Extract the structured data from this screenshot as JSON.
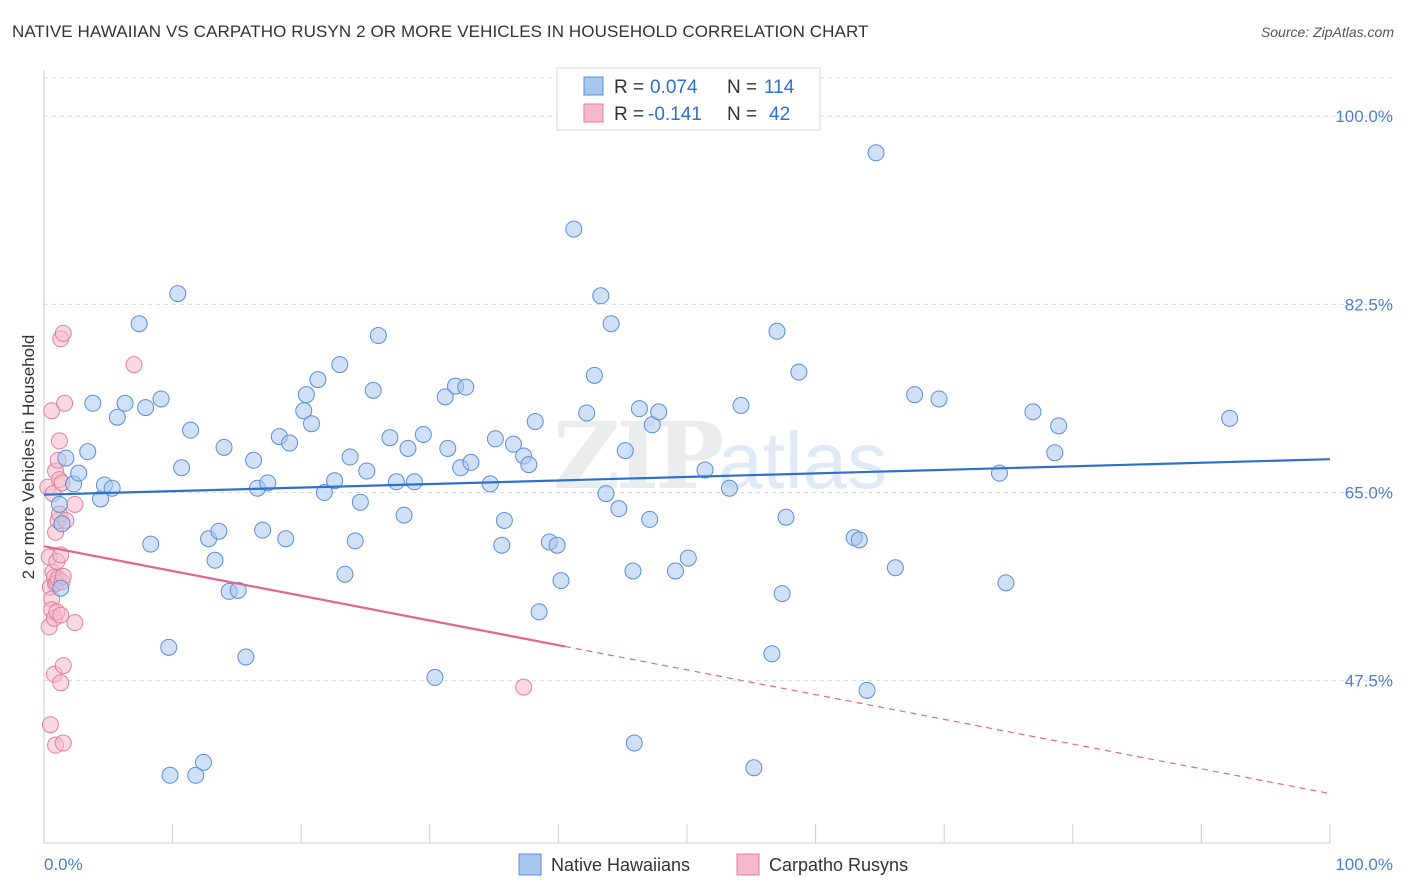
{
  "header": {
    "title": "NATIVE HAWAIIAN VS CARPATHO RUSYN 2 OR MORE VEHICLES IN HOUSEHOLD CORRELATION CHART",
    "source": "Source: ZipAtlas.com"
  },
  "watermark": {
    "zip": "ZIP",
    "atlas": "atlas"
  },
  "colors": {
    "blue_fill": "#a9c6ef",
    "blue_stroke": "#5b8ed6",
    "blue_line": "#2f6fd0",
    "pink_fill": "#f6b9cb",
    "pink_stroke": "#e07f9f",
    "pink_line": "#e0668f",
    "tick_text": "#4a7fd4",
    "grid": "#d9d9d9"
  },
  "legend": {
    "rows": [
      {
        "r_label": "R =",
        "r_value": "0.074",
        "n_label": "N =",
        "n_value": "114"
      },
      {
        "r_label": "R =",
        "r_value": "-0.141",
        "n_label": "N =",
        "n_value": "42"
      }
    ]
  },
  "bottom_legend": [
    "Native Hawaiians",
    "Carpatho Rusyns"
  ],
  "chart_data": {
    "type": "scatter",
    "title": "NATIVE HAWAIIAN VS CARPATHO RUSYN 2 OR MORE VEHICLES IN HOUSEHOLD CORRELATION CHART",
    "xlabel": "",
    "ylabel": "2 or more Vehicles in Household",
    "xlim": [
      0,
      100
    ],
    "ylim": [
      32.4,
      104.3
    ],
    "x_tick_labels": [
      "0.0%",
      "100.0%"
    ],
    "y_ticks": [
      47.5,
      65.0,
      82.5,
      100.0
    ],
    "y_tick_labels": [
      "47.5%",
      "65.0%",
      "82.5%",
      "100.0%"
    ],
    "grid": true,
    "legend_position": "top-center",
    "series": [
      {
        "name": "Native Hawaiians",
        "R": 0.074,
        "N": 114,
        "trend": {
          "x": [
            0,
            100
          ],
          "y": [
            64.8,
            68.1
          ],
          "dashed_from_x": null
        },
        "points": [
          [
            1.2,
            63.9
          ],
          [
            1.3,
            56.1
          ],
          [
            1.4,
            62.1
          ],
          [
            1.7,
            68.2
          ],
          [
            2.3,
            65.8
          ],
          [
            2.7,
            66.8
          ],
          [
            3.4,
            68.8
          ],
          [
            3.8,
            73.3
          ],
          [
            4.4,
            64.4
          ],
          [
            4.7,
            65.7
          ],
          [
            5.3,
            65.4
          ],
          [
            5.7,
            72.0
          ],
          [
            6.3,
            73.3
          ],
          [
            7.4,
            80.7
          ],
          [
            7.9,
            72.9
          ],
          [
            8.3,
            60.2
          ],
          [
            9.1,
            73.7
          ],
          [
            9.7,
            50.6
          ],
          [
            9.8,
            38.7
          ],
          [
            10.4,
            83.5
          ],
          [
            10.7,
            67.3
          ],
          [
            11.4,
            70.8
          ],
          [
            11.8,
            38.7
          ],
          [
            12.4,
            39.9
          ],
          [
            12.8,
            60.7
          ],
          [
            13.3,
            58.7
          ],
          [
            13.6,
            61.4
          ],
          [
            14.0,
            69.2
          ],
          [
            14.4,
            55.8
          ],
          [
            15.1,
            55.9
          ],
          [
            15.7,
            49.7
          ],
          [
            16.3,
            68.0
          ],
          [
            16.6,
            65.4
          ],
          [
            17.0,
            61.5
          ],
          [
            17.4,
            65.9
          ],
          [
            18.3,
            70.2
          ],
          [
            18.8,
            60.7
          ],
          [
            19.1,
            69.6
          ],
          [
            20.2,
            72.6
          ],
          [
            20.4,
            74.1
          ],
          [
            20.8,
            71.4
          ],
          [
            21.3,
            75.5
          ],
          [
            21.8,
            65.0
          ],
          [
            22.6,
            66.1
          ],
          [
            23.0,
            76.9
          ],
          [
            23.4,
            57.4
          ],
          [
            23.8,
            68.3
          ],
          [
            24.2,
            60.5
          ],
          [
            24.6,
            64.1
          ],
          [
            25.1,
            67.0
          ],
          [
            25.6,
            74.5
          ],
          [
            26.0,
            79.6
          ],
          [
            26.9,
            70.1
          ],
          [
            27.4,
            66.0
          ],
          [
            28.0,
            62.9
          ],
          [
            28.3,
            69.1
          ],
          [
            28.8,
            66.0
          ],
          [
            29.5,
            70.4
          ],
          [
            30.4,
            47.8
          ],
          [
            31.2,
            73.9
          ],
          [
            31.4,
            69.1
          ],
          [
            32.0,
            74.9
          ],
          [
            32.4,
            67.3
          ],
          [
            32.8,
            74.8
          ],
          [
            33.2,
            67.8
          ],
          [
            34.7,
            65.8
          ],
          [
            35.1,
            70.0
          ],
          [
            35.6,
            60.1
          ],
          [
            35.8,
            62.4
          ],
          [
            36.5,
            69.5
          ],
          [
            37.3,
            68.4
          ],
          [
            37.7,
            67.6
          ],
          [
            38.2,
            71.6
          ],
          [
            38.5,
            53.9
          ],
          [
            39.3,
            60.4
          ],
          [
            39.9,
            60.1
          ],
          [
            40.2,
            56.8
          ],
          [
            41.2,
            89.5
          ],
          [
            42.2,
            72.4
          ],
          [
            42.8,
            75.9
          ],
          [
            43.3,
            83.3
          ],
          [
            43.7,
            64.9
          ],
          [
            44.1,
            80.7
          ],
          [
            44.7,
            63.5
          ],
          [
            45.2,
            68.9
          ],
          [
            45.8,
            57.7
          ],
          [
            45.9,
            41.7
          ],
          [
            46.3,
            72.8
          ],
          [
            47.1,
            62.5
          ],
          [
            47.3,
            71.3
          ],
          [
            47.8,
            72.5
          ],
          [
            49.1,
            57.7
          ],
          [
            50.1,
            58.9
          ],
          [
            51.4,
            67.1
          ],
          [
            53.3,
            65.4
          ],
          [
            54.2,
            73.1
          ],
          [
            55.2,
            39.4
          ],
          [
            56.6,
            50.0
          ],
          [
            57.0,
            80.0
          ],
          [
            57.4,
            55.6
          ],
          [
            57.7,
            62.7
          ],
          [
            58.7,
            76.2
          ],
          [
            63.0,
            60.8
          ],
          [
            63.4,
            60.6
          ],
          [
            64.0,
            46.6
          ],
          [
            64.7,
            96.6
          ],
          [
            66.2,
            58.0
          ],
          [
            67.7,
            74.1
          ],
          [
            69.6,
            73.7
          ],
          [
            74.3,
            66.8
          ],
          [
            74.8,
            56.6
          ],
          [
            76.9,
            72.5
          ],
          [
            78.6,
            68.7
          ],
          [
            78.9,
            71.2
          ],
          [
            92.2,
            71.9
          ]
        ]
      },
      {
        "name": "Carpatho Rusyns",
        "R": -0.141,
        "N": 42,
        "trend": {
          "x": [
            0,
            100
          ],
          "y": [
            60.0,
            37.0
          ],
          "dashed_from_x": 40.5
        },
        "points": [
          [
            0.3,
            65.5
          ],
          [
            0.4,
            59.0
          ],
          [
            0.4,
            52.5
          ],
          [
            0.5,
            56.2
          ],
          [
            0.5,
            43.4
          ],
          [
            0.6,
            72.6
          ],
          [
            0.6,
            55.1
          ],
          [
            0.6,
            54.1
          ],
          [
            0.7,
            57.6
          ],
          [
            0.7,
            64.9
          ],
          [
            0.8,
            57.1
          ],
          [
            0.8,
            53.3
          ],
          [
            0.8,
            48.1
          ],
          [
            0.9,
            67.0
          ],
          [
            0.9,
            61.3
          ],
          [
            0.9,
            56.5
          ],
          [
            0.9,
            41.5
          ],
          [
            1.0,
            58.6
          ],
          [
            1.0,
            56.6
          ],
          [
            1.0,
            53.9
          ],
          [
            1.1,
            68.0
          ],
          [
            1.1,
            62.4
          ],
          [
            1.1,
            57.0
          ],
          [
            1.2,
            69.8
          ],
          [
            1.2,
            66.2
          ],
          [
            1.2,
            63.0
          ],
          [
            1.3,
            79.3
          ],
          [
            1.3,
            59.2
          ],
          [
            1.3,
            53.6
          ],
          [
            1.3,
            47.3
          ],
          [
            1.4,
            65.9
          ],
          [
            1.4,
            56.7
          ],
          [
            1.5,
            79.8
          ],
          [
            1.5,
            57.2
          ],
          [
            1.5,
            48.9
          ],
          [
            1.5,
            41.7
          ],
          [
            1.6,
            73.3
          ],
          [
            1.7,
            62.4
          ],
          [
            2.4,
            52.9
          ],
          [
            2.4,
            63.9
          ],
          [
            7.0,
            76.9
          ],
          [
            37.3,
            46.9
          ]
        ]
      }
    ]
  }
}
